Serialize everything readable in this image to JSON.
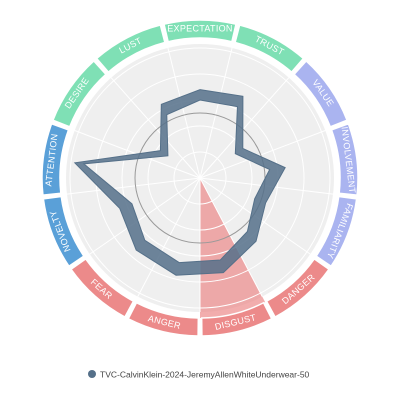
{
  "chart_data": {
    "type": "radar",
    "categories": [
      "EXPECTATION",
      "TRUST",
      "VALUE",
      "INVOLVEMENT",
      "FAMILIARITY",
      "DANGER",
      "DISGUST",
      "ANGER",
      "FEAR",
      "NOVELTY",
      "ATTENTION",
      "DESIRE",
      "LUST"
    ],
    "category_colors": [
      "#7fe0b5",
      "#7fe0b5",
      "#aab4f0",
      "#aab4f0",
      "#aab4f0",
      "#ec8a8a",
      "#ec8a8a",
      "#ec8a8a",
      "#ec8a8a",
      "#5aa0d8",
      "#5aa0d8",
      "#7fe0b5",
      "#7fe0b5"
    ],
    "ylim": [
      0,
      1
    ],
    "highlight": 6,
    "highlight_color": "#ec8a8a",
    "series": [
      {
        "name": "TVC-CalvinKlein-2024-JeremyAllenWhiteUnderwear-50",
        "color": "#557089",
        "values": [
          0.68,
          0.71,
          0.4,
          0.66,
          0.54,
          0.65,
          0.75,
          0.77,
          0.74,
          0.66,
          0.97,
          0.37,
          0.64
        ],
        "lower": [
          0.6,
          0.62,
          0.33,
          0.54,
          0.45,
          0.55,
          0.65,
          0.67,
          0.64,
          0.56,
          0.9,
          0.3,
          0.55
        ]
      }
    ]
  }
}
